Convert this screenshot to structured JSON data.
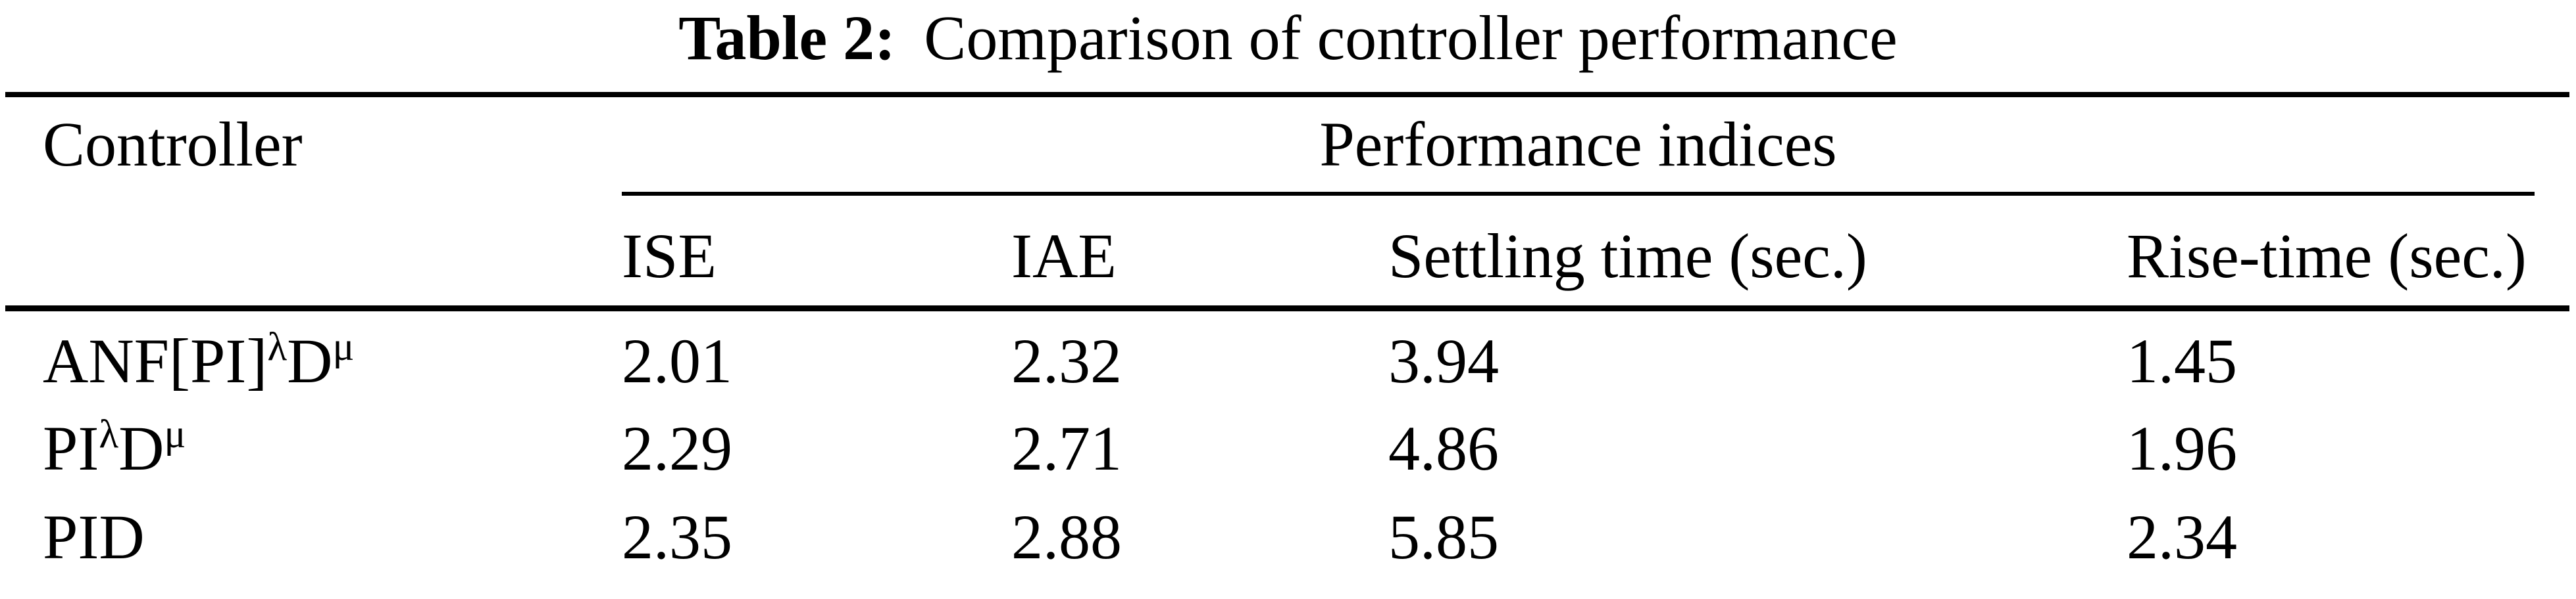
{
  "title": {
    "label": "Table 2:",
    "text": "Comparison of controller performance"
  },
  "table": {
    "controller_header": "Controller",
    "group_header": "Performance indices",
    "columns": [
      "ISE",
      "IAE",
      "Settling time (sec.)",
      "Rise-time (sec.)"
    ],
    "rows": [
      {
        "name_parts": [
          {
            "text": "ANF[PI]"
          },
          {
            "sup": "λ"
          },
          {
            "text": "D"
          },
          {
            "sup": "μ"
          }
        ],
        "values": [
          "2.01",
          "2.32",
          "3.94",
          "1.45"
        ]
      },
      {
        "name_parts": [
          {
            "text": "PI"
          },
          {
            "sup": "λ"
          },
          {
            "text": "D"
          },
          {
            "sup": "μ"
          }
        ],
        "values": [
          "2.29",
          "2.71",
          "4.86",
          "1.96"
        ]
      },
      {
        "name_parts": [
          {
            "text": "PID"
          }
        ],
        "values": [
          "2.35",
          "2.88",
          "5.85",
          "2.34"
        ]
      }
    ]
  },
  "colors": {
    "background": "#ffffff",
    "text": "#000000",
    "rule": "#000000"
  }
}
